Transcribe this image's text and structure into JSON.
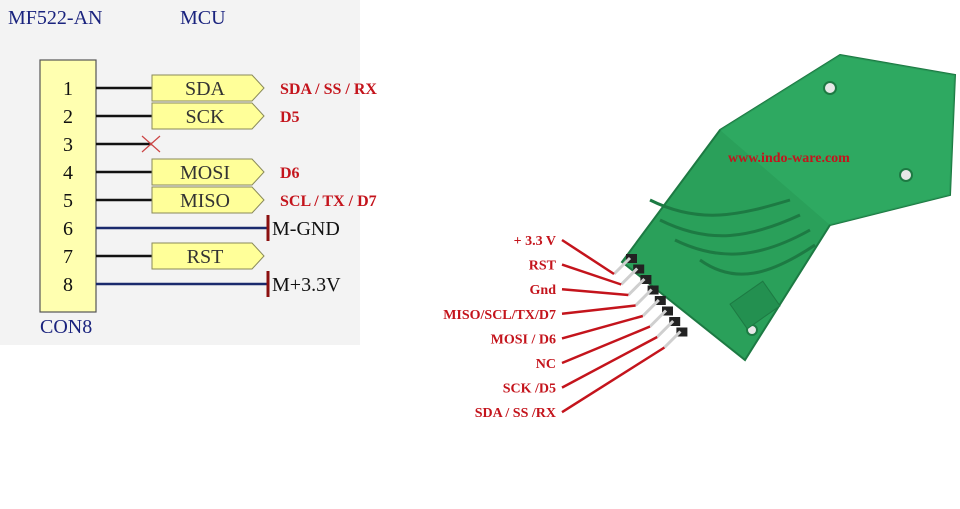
{
  "schematic": {
    "component_title": "MF522-AN",
    "mcu_title": "MCU",
    "connector_label": "CON8",
    "pins": [
      {
        "number": "1",
        "signal": "SDA",
        "mapping": "SDA / SS / RX",
        "kind": "port"
      },
      {
        "number": "2",
        "signal": "SCK",
        "mapping": "D5",
        "kind": "port"
      },
      {
        "number": "3",
        "signal": "",
        "mapping": "",
        "kind": "nc"
      },
      {
        "number": "4",
        "signal": "MOSI",
        "mapping": "D6",
        "kind": "port"
      },
      {
        "number": "5",
        "signal": "MISO",
        "mapping": "SCL / TX / D7",
        "kind": "port"
      },
      {
        "number": "6",
        "signal": "M-GND",
        "mapping": "",
        "kind": "power"
      },
      {
        "number": "7",
        "signal": "RST",
        "mapping": "",
        "kind": "port"
      },
      {
        "number": "8",
        "signal": "M+3.3V",
        "mapping": "",
        "kind": "power"
      }
    ]
  },
  "board": {
    "watermark": "www.indo-ware.com",
    "pin_labels": [
      "+ 3.3 V",
      "RST",
      "Gnd",
      "MISO/SCL/TX/D7",
      "MOSI / D6",
      "NC",
      "SCK /D5",
      "SDA / SS /RX"
    ]
  },
  "colors": {
    "pcb": "#2aa05a",
    "pcb_dark": "#1d7a43",
    "label_red": "#c4141c",
    "port_fill": "#ffff99",
    "schem_bg": "#f3f3f3",
    "wire_power": "#1a2a6c",
    "power_symbol": "#8b1010"
  }
}
